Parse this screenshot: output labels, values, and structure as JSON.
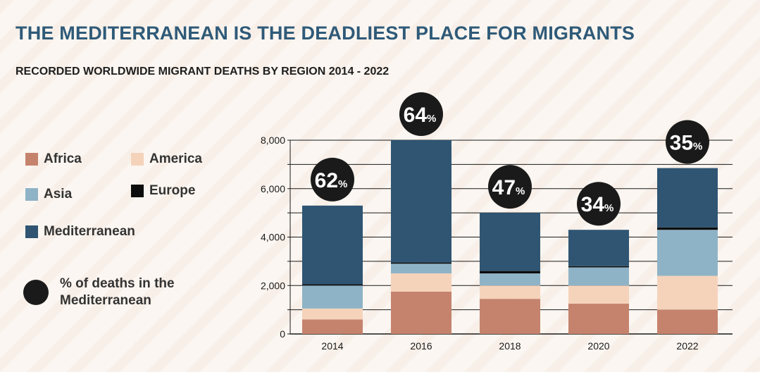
{
  "header": {
    "title": "THE MEDITERRANEAN IS THE DEADLIEST PLACE FOR MIGRANTS",
    "subtitle": "RECORDED WORLDWIDE MIGRANT DEATHS BY REGION 2014 - 2022"
  },
  "legend": {
    "africa": "Africa",
    "america": "America",
    "asia": "Asia",
    "europe": "Europe",
    "mediterranean": "Mediterranean",
    "pct_label": "% of deaths in the Mediterranean"
  },
  "colors": {
    "africa": "#c5836d",
    "america": "#f5d3bb",
    "asia": "#8fb3c6",
    "europe": "#0d0d0d",
    "mediterranean": "#2f5573",
    "circle": "#1a1a1a"
  },
  "chart_data": {
    "type": "bar",
    "stacked": true,
    "title": "RECORDED WORLDWIDE MIGRANT DEATHS BY REGION 2014 - 2022",
    "xlabel": "",
    "ylabel": "",
    "ylim": [
      0,
      8000
    ],
    "yticks": [
      0,
      2000,
      4000,
      6000,
      8000
    ],
    "ytick_labels": [
      "0",
      "2,000",
      "4,000",
      "6,000",
      "8,000"
    ],
    "categories": [
      "2014",
      "2016",
      "2018",
      "2020",
      "2022"
    ],
    "series": [
      {
        "name": "Africa",
        "key": "africa",
        "values": [
          600,
          1750,
          1450,
          1250,
          1000
        ]
      },
      {
        "name": "America",
        "key": "america",
        "values": [
          450,
          750,
          550,
          750,
          1400
        ]
      },
      {
        "name": "Asia",
        "key": "asia",
        "values": [
          950,
          400,
          500,
          750,
          1900
        ]
      },
      {
        "name": "Europe",
        "key": "europe",
        "values": [
          50,
          50,
          100,
          50,
          100
        ]
      },
      {
        "name": "Mediterranean",
        "key": "mediterranean",
        "values": [
          3250,
          5050,
          2400,
          1500,
          2450
        ]
      }
    ],
    "percent_mediterranean": [
      "62",
      "64",
      "47",
      "34",
      "35"
    ],
    "percent_suffix": "%"
  }
}
